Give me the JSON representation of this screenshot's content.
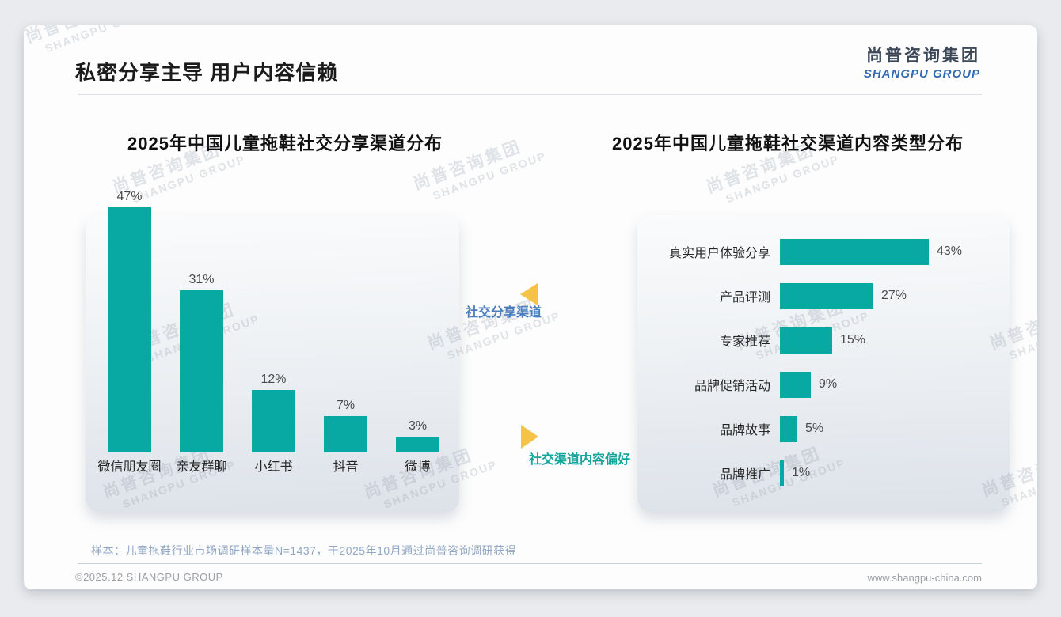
{
  "header": {
    "title": "私密分享主导 用户内容信赖",
    "logo_cn": "尚普咨询集团",
    "logo_en": "SHANGPU GROUP"
  },
  "watermark": {
    "cn": "尚普咨询集团",
    "en": "SHANGPU GROUP"
  },
  "annotations": {
    "left": "社交分享渠道",
    "right": "社交渠道内容偏好"
  },
  "footer": {
    "note": "样本：儿童拖鞋行业市场调研样本量N=1437，于2025年10月通过尚普咨询调研获得",
    "copyright": "©2025.12 SHANGPU GROUP",
    "website": "www.shangpu-china.com"
  },
  "colors": {
    "bar": "#08a8a3",
    "triangle": "#f6c349",
    "annotation_blue": "#4a7dbd",
    "annotation_teal": "#14a49b"
  },
  "chart_data": [
    {
      "type": "bar",
      "orientation": "vertical",
      "title": "2025年中国儿童拖鞋社交分享渠道分布",
      "categories": [
        "微信朋友圈",
        "亲友群聊",
        "小红书",
        "抖音",
        "微博"
      ],
      "values": [
        47,
        31,
        12,
        7,
        3
      ],
      "value_labels": [
        "47%",
        "31%",
        "12%",
        "7%",
        "3%"
      ],
      "unit": "%",
      "bar_color": "#08a8a3",
      "ylim": [
        0,
        50
      ],
      "grid": false,
      "legend": "none"
    },
    {
      "type": "bar",
      "orientation": "horizontal",
      "title": "2025年中国儿童拖鞋社交渠道内容类型分布",
      "categories": [
        "真实用户体验分享",
        "产品评测",
        "专家推荐",
        "品牌促销活动",
        "品牌故事",
        "品牌推广"
      ],
      "values": [
        43,
        27,
        15,
        9,
        5,
        1
      ],
      "value_labels": [
        "43%",
        "27%",
        "15%",
        "9%",
        "5%",
        "1%"
      ],
      "unit": "%",
      "bar_color": "#08a8a3",
      "xlim": [
        0,
        50
      ],
      "grid": false,
      "legend": "none"
    }
  ]
}
